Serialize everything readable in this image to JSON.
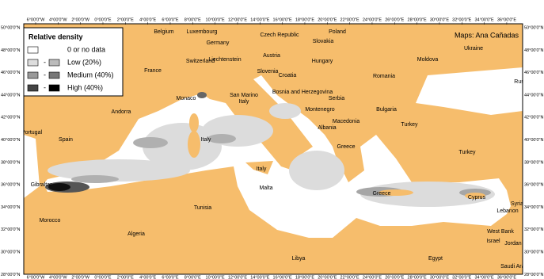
{
  "legend": {
    "title": "Relative density",
    "items": [
      {
        "label": "0 or no data"
      },
      {
        "label": "Low (20%)",
        "separator": "-"
      },
      {
        "label": "Medium (40%)",
        "separator": "-"
      },
      {
        "label": "High (40%)",
        "separator": "-"
      }
    ]
  },
  "credit": "Maps: Ana Cañadas",
  "longitude_labels": [
    "6°00'0\"W",
    "4°00'0\"W",
    "2°00'0\"W",
    "0°00'0\"E",
    "2°00'0\"E",
    "4°00'0\"E",
    "6°00'0\"E",
    "8°00'0\"E",
    "10°00'0\"E",
    "12°00'0\"E",
    "14°00'0\"E",
    "16°00'0\"E",
    "18°00'0\"E",
    "20°00'0\"E",
    "22°00'0\"E",
    "24°00'0\"E",
    "26°00'0\"E",
    "28°00'0\"E",
    "30°00'0\"E",
    "32°00'0\"E",
    "34°00'0\"E",
    "36°00'0\"E"
  ],
  "latitude_labels": [
    "50°00'0\"N",
    "48°00'0\"N",
    "46°00'0\"N",
    "44°00'0\"N",
    "42°00'0\"N",
    "40°00'0\"N",
    "38°00'0\"N",
    "36°00'0\"N",
    "34°00'0\"N",
    "32°00'0\"N",
    "30°00'0\"N",
    "28°00'0\"N"
  ],
  "places": [
    "Belgium",
    "Luxembourg",
    "Germany",
    "Czech Republic",
    "Poland",
    "Slovakia",
    "Ukraine",
    "Switzerland",
    "Liechtenstein",
    "Austria",
    "Hungary",
    "Moldova",
    "France",
    "Slovenia",
    "Croatia",
    "Romania",
    "Russia",
    "Monaco",
    "San Marino",
    "Italy",
    "Bosnia and Herzegovina",
    "Serbia",
    "Andorra",
    "Montenegro",
    "Bulgaria",
    "Turkey",
    "Macedonia",
    "Portugal",
    "Albania",
    "Spain",
    "Italy",
    "Greece",
    "Turkey",
    "Italy",
    "Malta",
    "Greece",
    "Cyprus",
    "Gibraltar",
    "Syria",
    "Lebanon",
    "Tunisia",
    "West Bank",
    "Morocco",
    "Jordan",
    "Israel",
    "Algeria",
    "Libya",
    "Egypt",
    "Saudi Arabia"
  ]
}
